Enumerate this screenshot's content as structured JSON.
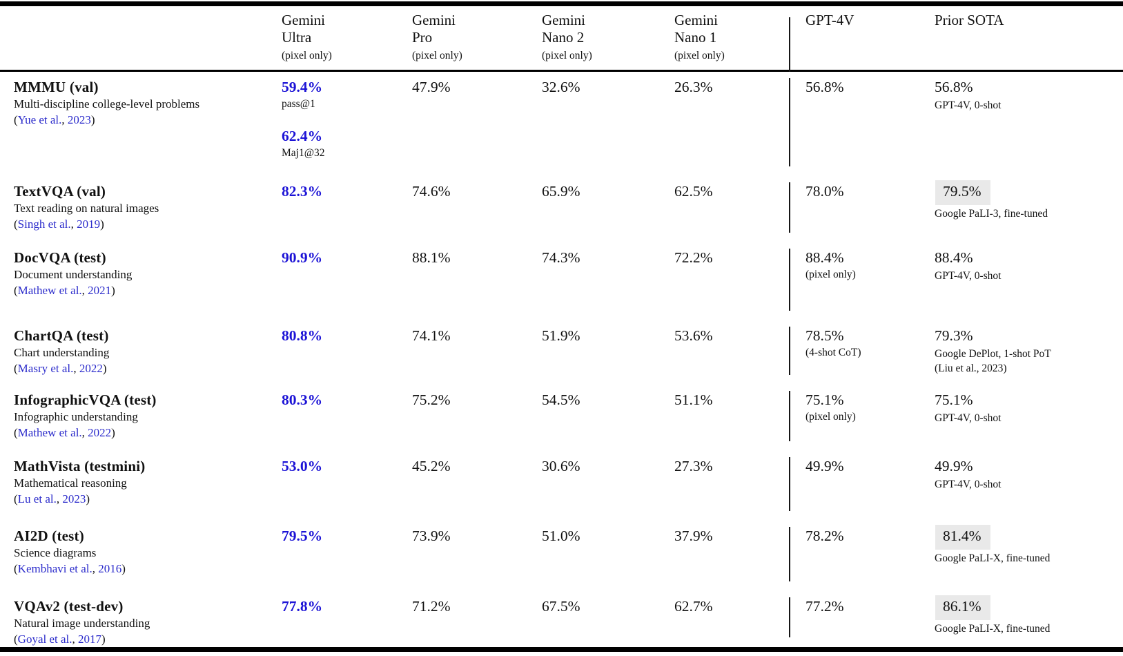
{
  "punct": {
    "open": "(",
    "comma": ", ",
    "close": ")"
  },
  "colors": {
    "value_blue": "#1c13d6",
    "link_blue": "#2b2bcb",
    "highlight": "#e9e9e9"
  },
  "header": {
    "models": [
      {
        "line1": "Gemini",
        "line2": "Ultra",
        "note": "(pixel only)"
      },
      {
        "line1": "Gemini",
        "line2": "Pro",
        "note": "(pixel only)"
      },
      {
        "line1": "Gemini",
        "line2": "Nano 2",
        "note": "(pixel only)"
      },
      {
        "line1": "Gemini",
        "line2": "Nano 1",
        "note": "(pixel only)"
      },
      {
        "line1": "GPT-4V",
        "line2": "",
        "note": ""
      },
      {
        "line1": "Prior SOTA",
        "line2": "",
        "note": ""
      }
    ]
  },
  "rows": [
    {
      "name": "MMMU (val)",
      "description": "Multi-discipline college-level problems",
      "citation": {
        "authors": "Yue et al.",
        "year": "2023"
      },
      "gemini_ultra": {
        "value": "59.4%",
        "note": "pass@1",
        "value2": "62.4%",
        "note2": "Maj1@32"
      },
      "gemini_pro": "47.9%",
      "gemini_nano2": "32.6%",
      "gemini_nano1": "26.3%",
      "gpt4v": {
        "value": "56.8%",
        "note": ""
      },
      "prior_sota": {
        "value": "56.8%",
        "note": "GPT-4V, 0-shot",
        "note2": "",
        "highlight": false
      }
    },
    {
      "name": "TextVQA (val)",
      "description": "Text reading on natural images",
      "citation": {
        "authors": "Singh et al.",
        "year": "2019"
      },
      "gemini_ultra": {
        "value": "82.3%",
        "note": ""
      },
      "gemini_pro": "74.6%",
      "gemini_nano2": "65.9%",
      "gemini_nano1": "62.5%",
      "gpt4v": {
        "value": "78.0%",
        "note": ""
      },
      "prior_sota": {
        "value": "79.5%",
        "note": "Google PaLI-3, fine-tuned",
        "note2": "",
        "highlight": true
      }
    },
    {
      "name": "DocVQA (test)",
      "description": "Document understanding",
      "citation": {
        "authors": "Mathew et al.",
        "year": "2021"
      },
      "gemini_ultra": {
        "value": "90.9%",
        "note": ""
      },
      "gemini_pro": "88.1%",
      "gemini_nano2": "74.3%",
      "gemini_nano1": "72.2%",
      "gpt4v": {
        "value": "88.4%",
        "note": "(pixel only)"
      },
      "prior_sota": {
        "value": "88.4%",
        "note": "GPT-4V, 0-shot",
        "note2": "",
        "highlight": false
      }
    },
    {
      "name": "ChartQA (test)",
      "description": "Chart understanding",
      "citation": {
        "authors": "Masry et al.",
        "year": "2022"
      },
      "gemini_ultra": {
        "value": "80.8%",
        "note": ""
      },
      "gemini_pro": "74.1%",
      "gemini_nano2": "51.9%",
      "gemini_nano1": "53.6%",
      "gpt4v": {
        "value": "78.5%",
        "note": "(4-shot CoT)"
      },
      "prior_sota": {
        "value": "79.3%",
        "note": "Google DePlot, 1-shot PoT",
        "note2": "(Liu et al., 2023)",
        "highlight": false
      }
    },
    {
      "name": "InfographicVQA (test)",
      "description": "Infographic understanding",
      "citation": {
        "authors": "Mathew et al.",
        "year": "2022"
      },
      "gemini_ultra": {
        "value": "80.3%",
        "note": ""
      },
      "gemini_pro": "75.2%",
      "gemini_nano2": "54.5%",
      "gemini_nano1": "51.1%",
      "gpt4v": {
        "value": "75.1%",
        "note": "(pixel only)"
      },
      "prior_sota": {
        "value": "75.1%",
        "note": "GPT-4V, 0-shot",
        "note2": "",
        "highlight": false
      }
    },
    {
      "name": "MathVista (testmini)",
      "description": "Mathematical reasoning",
      "citation": {
        "authors": "Lu et al.",
        "year": "2023"
      },
      "gemini_ultra": {
        "value": "53.0%",
        "note": ""
      },
      "gemini_pro": "45.2%",
      "gemini_nano2": "30.6%",
      "gemini_nano1": "27.3%",
      "gpt4v": {
        "value": "49.9%",
        "note": ""
      },
      "prior_sota": {
        "value": "49.9%",
        "note": "GPT-4V, 0-shot",
        "note2": "",
        "highlight": false
      }
    },
    {
      "name": "AI2D (test)",
      "description": "Science diagrams",
      "citation": {
        "authors": "Kembhavi et al.",
        "year": "2016"
      },
      "gemini_ultra": {
        "value": "79.5%",
        "note": ""
      },
      "gemini_pro": "73.9%",
      "gemini_nano2": "51.0%",
      "gemini_nano1": "37.9%",
      "gpt4v": {
        "value": "78.2%",
        "note": ""
      },
      "prior_sota": {
        "value": "81.4%",
        "note": "Google PaLI-X, fine-tuned",
        "note2": "",
        "highlight": true
      }
    },
    {
      "name": "VQAv2 (test-dev)",
      "description": "Natural image understanding",
      "citation": {
        "authors": "Goyal et al.",
        "year": "2017"
      },
      "gemini_ultra": {
        "value": "77.8%",
        "note": ""
      },
      "gemini_pro": "71.2%",
      "gemini_nano2": "67.5%",
      "gemini_nano1": "62.7%",
      "gpt4v": {
        "value": "77.2%",
        "note": ""
      },
      "prior_sota": {
        "value": "86.1%",
        "note": "Google PaLI-X, fine-tuned",
        "note2": "",
        "highlight": true
      }
    }
  ]
}
